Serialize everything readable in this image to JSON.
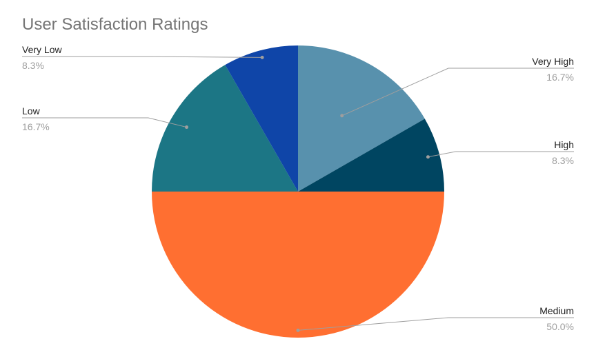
{
  "chart_data": {
    "type": "pie",
    "title": "User Satisfaction Ratings",
    "start_angle_deg": 0,
    "direction": "clockwise",
    "legend": "none",
    "slices": [
      {
        "label": "Very High",
        "value": 16.7,
        "value_label": "16.7%",
        "color": "#5891ad"
      },
      {
        "label": "High",
        "value": 8.3,
        "value_label": "8.3%",
        "color": "#004561"
      },
      {
        "label": "Medium",
        "value": 50.0,
        "value_label": "50.0%",
        "color": "#ff6f31"
      },
      {
        "label": "Low",
        "value": 16.7,
        "value_label": "16.7%",
        "color": "#1c7685"
      },
      {
        "label": "Very Low",
        "value": 8.3,
        "value_label": "8.3%",
        "color": "#0f45a8"
      }
    ]
  }
}
